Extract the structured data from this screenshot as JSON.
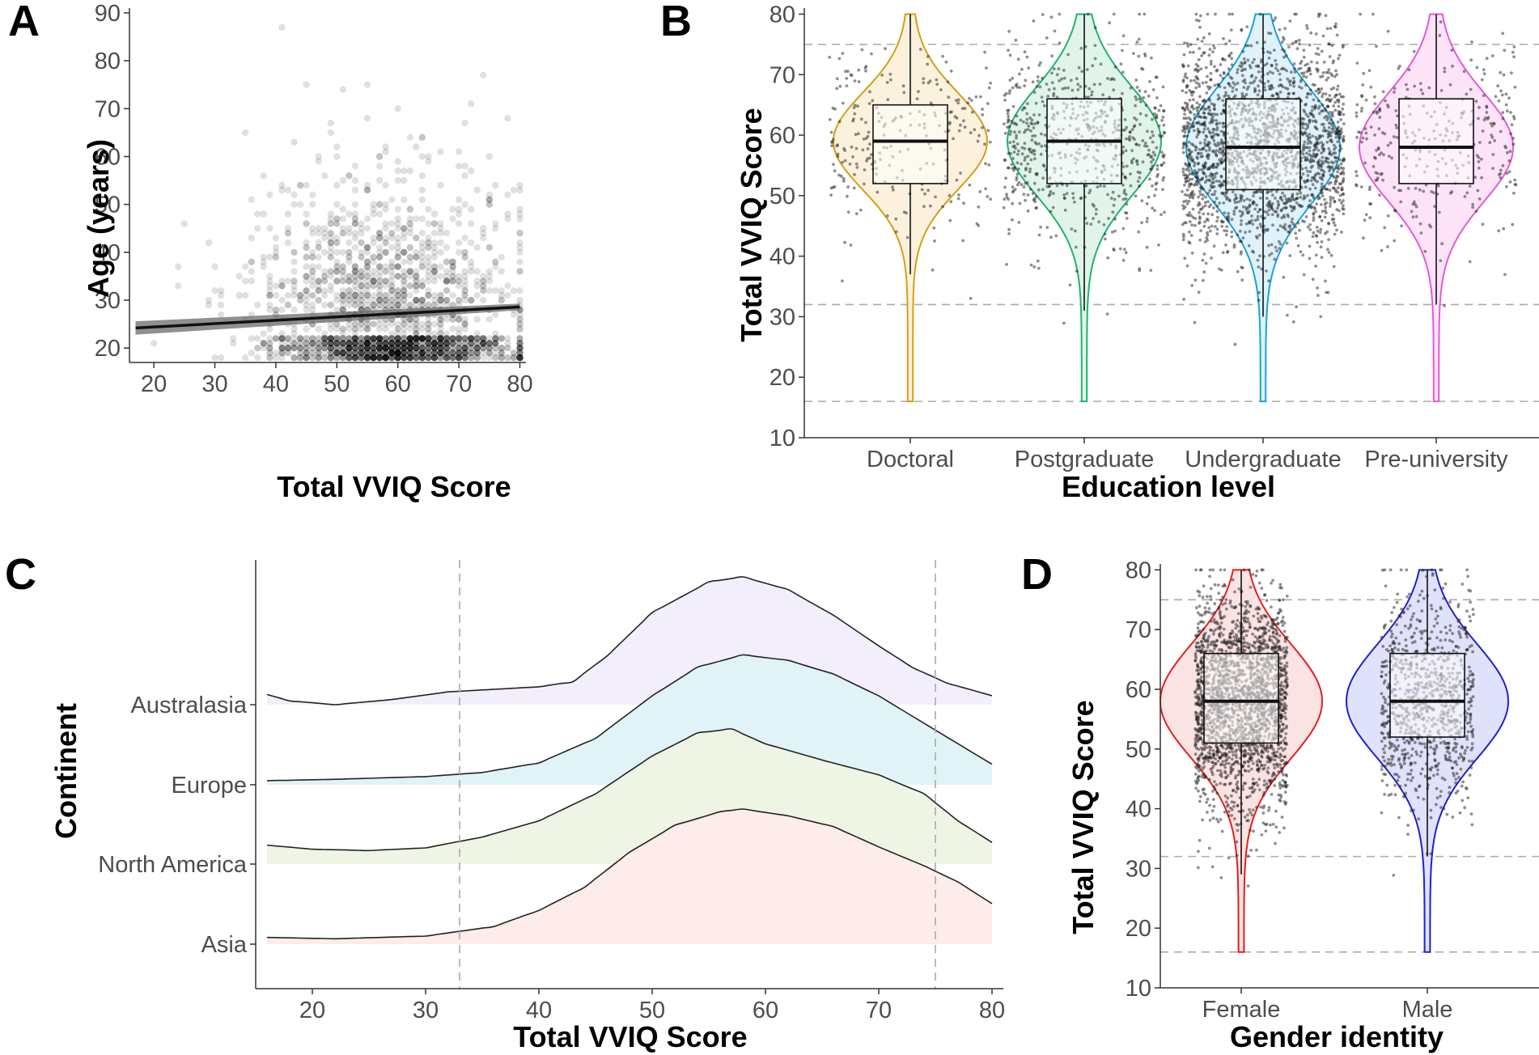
{
  "panels": {
    "a": {
      "label": "A"
    },
    "b": {
      "label": "B"
    },
    "c": {
      "label": "C"
    },
    "d": {
      "label": "D"
    }
  },
  "chart_data": [
    {
      "id": "A",
      "type": "scatter",
      "title": "",
      "xlabel": "Total VVIQ Score",
      "ylabel": "Age (years)",
      "xlim": [
        16,
        81
      ],
      "ylim": [
        17,
        91
      ],
      "xticks": [
        20,
        30,
        40,
        50,
        60,
        70,
        80
      ],
      "yticks": [
        20,
        30,
        40,
        50,
        60,
        70,
        80,
        90
      ],
      "regression": {
        "x": [
          17,
          80
        ],
        "y": [
          24.2,
          28.6
        ],
        "ci_halfwidth_at_ends": [
          1.4,
          0.7
        ]
      },
      "point_color": "#000000",
      "point_alpha": 0.12,
      "note": "Approx. 2,300 semi-transparent points; dense band at ages 18-22 for scores 45-80; sparse points up to age 90."
    },
    {
      "id": "B",
      "type": "violin",
      "xlabel": "Education level",
      "ylabel": "Total VVIQ Score",
      "ylim": [
        10,
        81
      ],
      "yticks": [
        10,
        20,
        30,
        40,
        50,
        60,
        70,
        80
      ],
      "reference_lines": [
        16,
        32,
        75
      ],
      "categories": [
        "Doctoral",
        "Postgraduate",
        "Undergraduate",
        "Pre-university"
      ],
      "colors": [
        "#D4A017",
        "#21B36E",
        "#1BA3D9",
        "#E05CD6"
      ],
      "fills": [
        "#FBF1DC",
        "#E0F4EA",
        "#DFF2FB",
        "#FCE3F8"
      ],
      "boxplots": [
        {
          "min": 37,
          "q1": 52,
          "median": 59,
          "q3": 65,
          "max": 80
        },
        {
          "min": 31,
          "q1": 52,
          "median": 59,
          "q3": 66,
          "max": 80
        },
        {
          "min": 30,
          "q1": 51,
          "median": 58,
          "q3": 66,
          "max": 80
        },
        {
          "min": 32,
          "q1": 52,
          "median": 58,
          "q3": 66,
          "max": 80
        }
      ],
      "n_points_approx": [
        260,
        700,
        2100,
        330
      ]
    },
    {
      "id": "C",
      "type": "ridgeline",
      "xlabel": "Total VVIQ Score",
      "ylabel": "Continent",
      "xlim": [
        15,
        81
      ],
      "xticks": [
        20,
        30,
        40,
        50,
        60,
        70,
        80
      ],
      "reference_lines": [
        33,
        75
      ],
      "series": [
        {
          "name": "Asia",
          "color": "#FDECEA",
          "x": [
            16,
            22,
            30,
            36,
            40,
            44,
            48,
            52,
            56,
            58,
            62,
            66,
            70,
            74,
            77,
            80
          ],
          "density": [
            0.05,
            0.04,
            0.06,
            0.13,
            0.25,
            0.42,
            0.68,
            0.88,
            0.98,
            1.0,
            0.95,
            0.87,
            0.72,
            0.58,
            0.46,
            0.3
          ]
        },
        {
          "name": "North America",
          "color": "#EEF5E4",
          "x": [
            16,
            20,
            25,
            30,
            35,
            40,
            45,
            50,
            54,
            57,
            60,
            65,
            70,
            74,
            77,
            80
          ],
          "density": [
            0.14,
            0.11,
            0.1,
            0.12,
            0.2,
            0.32,
            0.52,
            0.8,
            0.97,
            1.0,
            0.89,
            0.77,
            0.66,
            0.52,
            0.32,
            0.16
          ]
        },
        {
          "name": "Europe",
          "color": "#E0F3F7",
          "x": [
            16,
            22,
            30,
            35,
            40,
            45,
            50,
            54,
            58,
            62,
            66,
            70,
            73,
            76,
            78,
            80
          ],
          "density": [
            0.03,
            0.04,
            0.06,
            0.09,
            0.16,
            0.34,
            0.65,
            0.86,
            0.95,
            0.91,
            0.81,
            0.65,
            0.5,
            0.35,
            0.25,
            0.15
          ]
        },
        {
          "name": "Australasia",
          "color": "#F3EEFB",
          "x": [
            16,
            18,
            22,
            27,
            32,
            36,
            40,
            43,
            46,
            50,
            55,
            58,
            62,
            66,
            70,
            73,
            76,
            80
          ],
          "density": [
            0.08,
            0.03,
            0.0,
            0.04,
            0.1,
            0.12,
            0.14,
            0.18,
            0.38,
            0.72,
            0.96,
            1.0,
            0.9,
            0.7,
            0.46,
            0.29,
            0.17,
            0.07
          ]
        }
      ]
    },
    {
      "id": "D",
      "type": "violin",
      "xlabel": "Gender identity",
      "ylabel": "Total VVIQ Score",
      "ylim": [
        10,
        81
      ],
      "yticks": [
        10,
        20,
        30,
        40,
        50,
        60,
        70,
        80
      ],
      "reference_lines": [
        16,
        32,
        75
      ],
      "categories": [
        "Female",
        "Male"
      ],
      "colors": [
        "#E02020",
        "#1E22C8"
      ],
      "fills": [
        "#FCE3E3",
        "#E0E1FA"
      ],
      "boxplots": [
        {
          "min": 29,
          "q1": 51,
          "median": 58,
          "q3": 66,
          "max": 80
        },
        {
          "min": 32,
          "q1": 52,
          "median": 58,
          "q3": 66,
          "max": 80
        }
      ],
      "n_points_approx": [
        2200,
        900
      ]
    }
  ]
}
